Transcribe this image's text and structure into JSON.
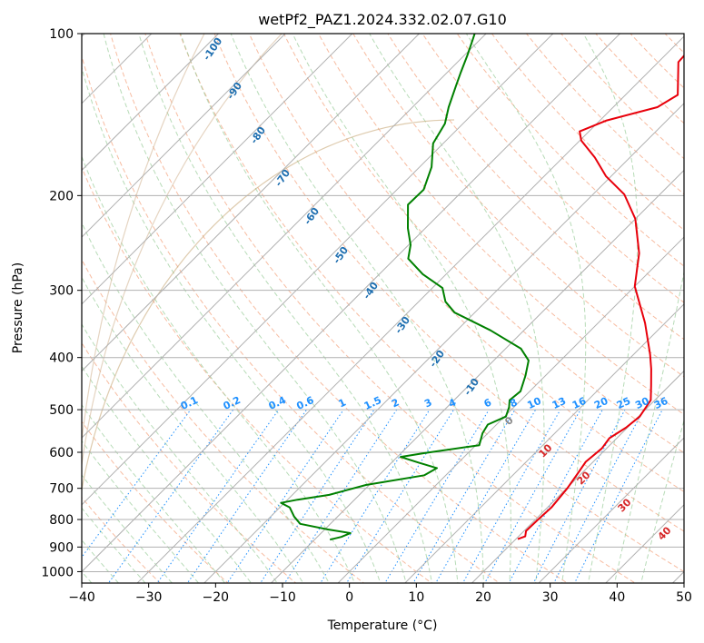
{
  "chart_data": {
    "type": "line",
    "title": "wetPf2_PAZ1.2024.332.02.07.G10",
    "xlabel": "Temperature (°C)",
    "ylabel": "Pressure (hPa)",
    "xlim": [
      -40,
      50
    ],
    "ylim": [
      1050,
      100
    ],
    "y_scale": "log",
    "x_ticks": [
      -40,
      -30,
      -20,
      -10,
      0,
      10,
      20,
      30,
      40,
      50
    ],
    "y_ticks": [
      100,
      200,
      300,
      400,
      500,
      600,
      700,
      800,
      900,
      1000
    ],
    "grid": true,
    "skew": "skew-T log-p",
    "series": [
      {
        "role": "temperature",
        "color": "#e8000b",
        "points": [
          {
            "t": 20.3,
            "p": 870
          },
          {
            "t": 21.0,
            "p": 860
          },
          {
            "t": 20.3,
            "p": 840
          },
          {
            "t": 20.4,
            "p": 800
          },
          {
            "t": 20.6,
            "p": 760
          },
          {
            "t": 20.1,
            "p": 700
          },
          {
            "t": 19.5,
            "p": 660
          },
          {
            "t": 18.9,
            "p": 625
          },
          {
            "t": 19.3,
            "p": 590
          },
          {
            "t": 18.9,
            "p": 565
          },
          {
            "t": 19.8,
            "p": 540
          },
          {
            "t": 20.2,
            "p": 515
          },
          {
            "t": 19.4,
            "p": 480
          },
          {
            "t": 17.2,
            "p": 450
          },
          {
            "t": 14.8,
            "p": 420
          },
          {
            "t": 12.5,
            "p": 395
          },
          {
            "t": 7.0,
            "p": 345
          },
          {
            "t": 0.0,
            "p": 295
          },
          {
            "t": -4.3,
            "p": 256
          },
          {
            "t": -10.0,
            "p": 221
          },
          {
            "t": -15.3,
            "p": 199
          },
          {
            "t": -20.8,
            "p": 184
          },
          {
            "t": -25.2,
            "p": 170
          },
          {
            "t": -29.8,
            "p": 158
          },
          {
            "t": -31.4,
            "p": 152
          },
          {
            "t": -29.0,
            "p": 145
          },
          {
            "t": -23.4,
            "p": 137
          },
          {
            "t": -22.2,
            "p": 130
          },
          {
            "t": -27.0,
            "p": 113
          },
          {
            "t": -27.3,
            "p": 105
          },
          {
            "t": -27.3,
            "p": 100
          }
        ]
      },
      {
        "role": "dewpoint",
        "color": "#008000",
        "points": [
          {
            "t": -7.7,
            "p": 872
          },
          {
            "t": -6.4,
            "p": 862
          },
          {
            "t": -5.6,
            "p": 848
          },
          {
            "t": -9.5,
            "p": 835
          },
          {
            "t": -14.5,
            "p": 815
          },
          {
            "t": -16.5,
            "p": 790
          },
          {
            "t": -18.5,
            "p": 760
          },
          {
            "t": -20.5,
            "p": 745
          },
          {
            "t": -18.5,
            "p": 735
          },
          {
            "t": -14.5,
            "p": 720
          },
          {
            "t": -10.5,
            "p": 690
          },
          {
            "t": -3.2,
            "p": 662
          },
          {
            "t": -2.4,
            "p": 642
          },
          {
            "t": -6.0,
            "p": 627
          },
          {
            "t": -9.5,
            "p": 612
          },
          {
            "t": -6.5,
            "p": 602
          },
          {
            "t": 0.5,
            "p": 582
          },
          {
            "t": -0.8,
            "p": 553
          },
          {
            "t": -1.3,
            "p": 533
          },
          {
            "t": 0.2,
            "p": 515
          },
          {
            "t": -0.7,
            "p": 495
          },
          {
            "t": -1.7,
            "p": 480
          },
          {
            "t": -1.4,
            "p": 462
          },
          {
            "t": -3.0,
            "p": 432
          },
          {
            "t": -4.8,
            "p": 405
          },
          {
            "t": -7.7,
            "p": 385
          },
          {
            "t": -15.0,
            "p": 356
          },
          {
            "t": -23.0,
            "p": 330
          },
          {
            "t": -26.0,
            "p": 315
          },
          {
            "t": -28.5,
            "p": 297
          },
          {
            "t": -33.5,
            "p": 280
          },
          {
            "t": -38.0,
            "p": 262
          },
          {
            "t": -39.7,
            "p": 247
          },
          {
            "t": -42.6,
            "p": 230
          },
          {
            "t": -46.1,
            "p": 208
          },
          {
            "t": -46.0,
            "p": 195
          },
          {
            "t": -48.2,
            "p": 177
          },
          {
            "t": -51.5,
            "p": 160
          },
          {
            "t": -52.7,
            "p": 147
          },
          {
            "t": -54.6,
            "p": 137
          },
          {
            "t": -56.7,
            "p": 125
          },
          {
            "t": -58.0,
            "p": 118
          },
          {
            "t": -59.5,
            "p": 110
          },
          {
            "t": -61.0,
            "p": 103
          },
          {
            "t": -61.7,
            "p": 100
          }
        ]
      }
    ],
    "dry_adiabat_labels": [
      -100,
      -90,
      -80,
      -70,
      -60,
      -50,
      -40,
      -30,
      -20,
      -10
    ],
    "dry_adiabat_label_color": "#1f6fb0",
    "moist_adiabat_labels": [
      0,
      10,
      20,
      30,
      40
    ],
    "moist_adiabat_label_colors": {
      "0": "#888888",
      "10": "#d62728",
      "20": "#d62728",
      "30": "#d62728",
      "40": "#d62728"
    },
    "mixing_ratio_labels": [
      "0.1",
      "0.2",
      "0.4",
      "0.6",
      "1",
      "1.5",
      "2",
      "3",
      "4",
      "6",
      "8",
      "10",
      "13",
      "16",
      "20",
      "25",
      "30",
      "36"
    ],
    "mixing_ratio_color": "#1e90ff"
  }
}
